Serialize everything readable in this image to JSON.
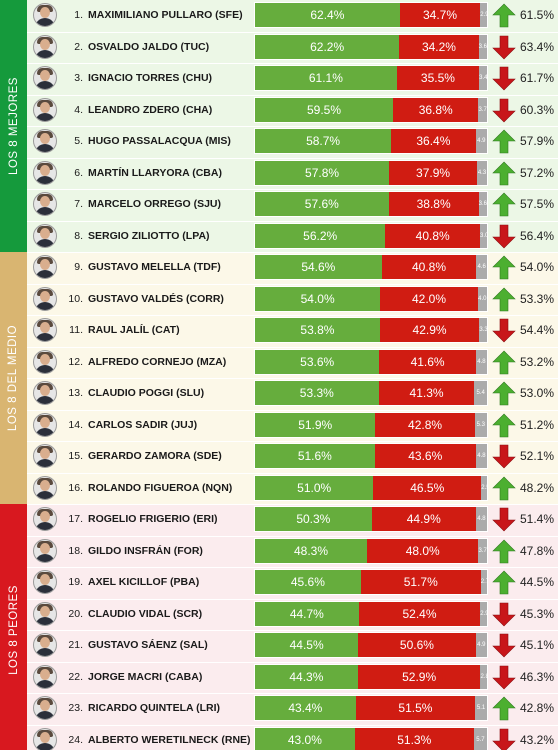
{
  "colors": {
    "approval": "#66ad3d",
    "disapproval": "#d01c12",
    "nsnc": "#ababab",
    "arrow_up": "#4caf30",
    "arrow_down": "#c8161a",
    "group_top": "#159a3c",
    "group_mid": "#d9b571",
    "group_low": "#d8181f"
  },
  "groups": [
    {
      "label": "LOS 8 MEJORES",
      "color": "#159a3c",
      "band": "#ecf7e6",
      "start": 0,
      "count": 8
    },
    {
      "label": "LOS 8 DEL MEDIO",
      "color": "#d9b571",
      "band": "#fcf8e8",
      "start": 8,
      "count": 8
    },
    {
      "label": "LOS 8 PEORES",
      "color": "#d8181f",
      "band": "#fbecee",
      "start": 16,
      "count": 8
    }
  ],
  "chart_data": {
    "type": "bar",
    "stacked": true,
    "series_labels_printed": false,
    "rows": [
      {
        "rank": "1.",
        "name": "MAXIMILIANO PULLARO (SFE)",
        "approval": 62.4,
        "disapproval": 34.7,
        "nsnc": 2.9,
        "trend": "up",
        "prev": "61.5%"
      },
      {
        "rank": "2.",
        "name": "OSVALDO JALDO (TUC)",
        "approval": 62.2,
        "disapproval": 34.2,
        "nsnc": 3.6,
        "trend": "down",
        "prev": "63.4%"
      },
      {
        "rank": "3.",
        "name": "IGNACIO TORRES (CHU)",
        "approval": 61.1,
        "disapproval": 35.5,
        "nsnc": 3.4,
        "trend": "down",
        "prev": "61.7%"
      },
      {
        "rank": "4.",
        "name": "LEANDRO ZDERO (CHA)",
        "approval": 59.5,
        "disapproval": 36.8,
        "nsnc": 3.7,
        "trend": "down",
        "prev": "60.3%"
      },
      {
        "rank": "5.",
        "name": "HUGO PASSALACQUA (MIS)",
        "approval": 58.7,
        "disapproval": 36.4,
        "nsnc": 4.9,
        "trend": "up",
        "prev": "57.9%"
      },
      {
        "rank": "6.",
        "name": "MARTÍN LLARYORA (CBA)",
        "approval": 57.8,
        "disapproval": 37.9,
        "nsnc": 4.3,
        "trend": "up",
        "prev": "57.2%"
      },
      {
        "rank": "7.",
        "name": "MARCELO ORREGO (SJU)",
        "approval": 57.6,
        "disapproval": 38.8,
        "nsnc": 3.6,
        "trend": "up",
        "prev": "57.5%"
      },
      {
        "rank": "8.",
        "name": "SERGIO ZILIOTTO (LPA)",
        "approval": 56.2,
        "disapproval": 40.8,
        "nsnc": 3.0,
        "trend": "down",
        "prev": "56.4%"
      },
      {
        "rank": "9.",
        "name": "GUSTAVO MELELLA (TDF)",
        "approval": 54.6,
        "disapproval": 40.8,
        "nsnc": 4.6,
        "trend": "up",
        "prev": "54.0%"
      },
      {
        "rank": "10.",
        "name": "GUSTAVO VALDÉS (CORR)",
        "approval": 54.0,
        "disapproval": 42.0,
        "nsnc": 4.0,
        "trend": "up",
        "prev": "53.3%"
      },
      {
        "rank": "11.",
        "name": "RAUL JALÍL (CAT)",
        "approval": 53.8,
        "disapproval": 42.9,
        "nsnc": 3.3,
        "trend": "down",
        "prev": "54.4%"
      },
      {
        "rank": "12.",
        "name": "ALFREDO CORNEJO (MZA)",
        "approval": 53.6,
        "disapproval": 41.6,
        "nsnc": 4.8,
        "trend": "up",
        "prev": "53.2%"
      },
      {
        "rank": "13.",
        "name": "CLAUDIO POGGI (SLU)",
        "approval": 53.3,
        "disapproval": 41.3,
        "nsnc": 5.4,
        "trend": "up",
        "prev": "53.0%"
      },
      {
        "rank": "14.",
        "name": "CARLOS SADIR (JUJ)",
        "approval": 51.9,
        "disapproval": 42.8,
        "nsnc": 5.3,
        "trend": "up",
        "prev": "51.2%"
      },
      {
        "rank": "15.",
        "name": "GERARDO ZAMORA (SDE)",
        "approval": 51.6,
        "disapproval": 43.6,
        "nsnc": 4.8,
        "trend": "down",
        "prev": "52.1%"
      },
      {
        "rank": "16.",
        "name": "ROLANDO FIGUEROA (NQN)",
        "approval": 51.0,
        "disapproval": 46.5,
        "nsnc": 2.5,
        "trend": "up",
        "prev": "48.2%"
      },
      {
        "rank": "17.",
        "name": "ROGELIO FRIGERIO (ERI)",
        "approval": 50.3,
        "disapproval": 44.9,
        "nsnc": 4.8,
        "trend": "down",
        "prev": "51.4%"
      },
      {
        "rank": "18.",
        "name": "GILDO INSFRÁN (FOR)",
        "approval": 48.3,
        "disapproval": 48.0,
        "nsnc": 3.7,
        "trend": "up",
        "prev": "47.8%"
      },
      {
        "rank": "19.",
        "name": "AXEL KICILLOF (PBA)",
        "approval": 45.6,
        "disapproval": 51.7,
        "nsnc": 2.7,
        "trend": "up",
        "prev": "44.5%"
      },
      {
        "rank": "20.",
        "name": "CLAUDIO VIDAL (SCR)",
        "approval": 44.7,
        "disapproval": 52.4,
        "nsnc": 2.9,
        "trend": "down",
        "prev": "45.3%"
      },
      {
        "rank": "21.",
        "name": "GUSTAVO SÁENZ (SAL)",
        "approval": 44.5,
        "disapproval": 50.6,
        "nsnc": 4.9,
        "trend": "down",
        "prev": "45.1%"
      },
      {
        "rank": "22.",
        "name": "JORGE MACRI (CABA)",
        "approval": 44.3,
        "disapproval": 52.9,
        "nsnc": 2.8,
        "trend": "down",
        "prev": "46.3%"
      },
      {
        "rank": "23.",
        "name": "RICARDO QUINTELA (LRI)",
        "approval": 43.4,
        "disapproval": 51.5,
        "nsnc": 5.1,
        "trend": "up",
        "prev": "42.8%"
      },
      {
        "rank": "24.",
        "name": "ALBERTO WERETILNECK (RNE)",
        "approval": 43.0,
        "disapproval": 51.3,
        "nsnc": 5.7,
        "trend": "down",
        "prev": "43.2%"
      }
    ]
  }
}
